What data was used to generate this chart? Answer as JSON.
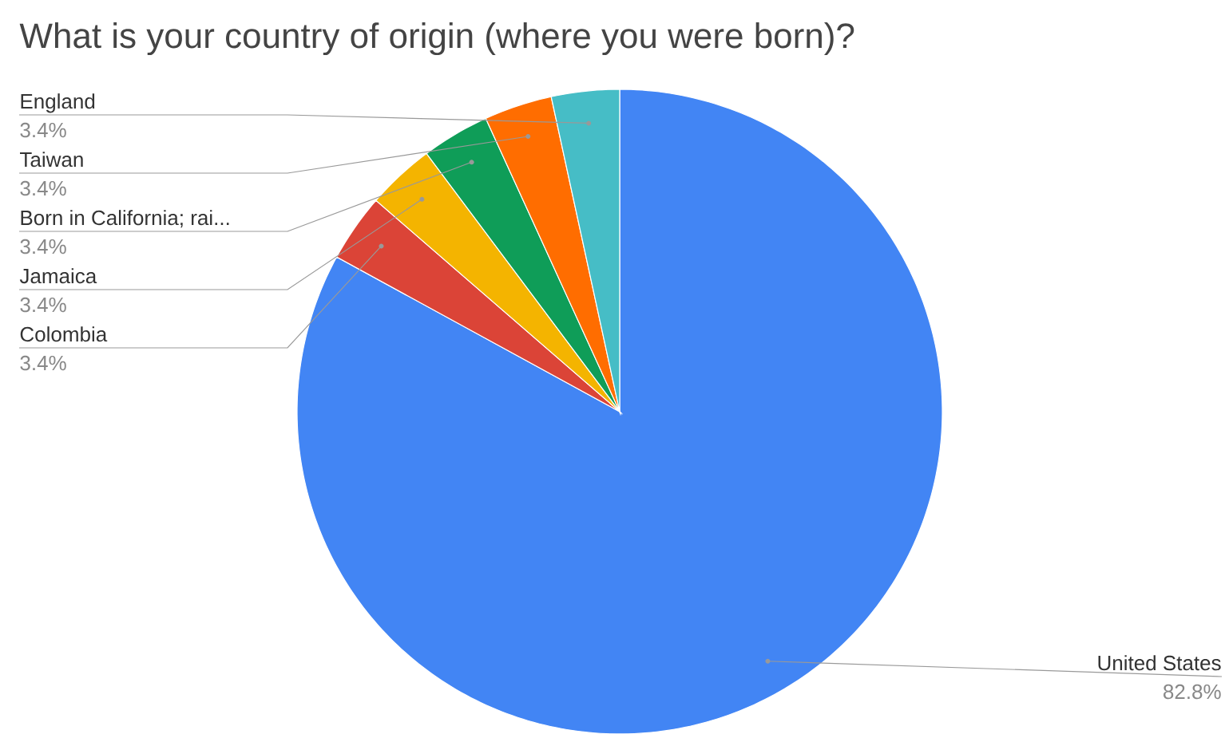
{
  "chart_data": {
    "type": "pie",
    "title": "What is your country of origin (where you were born)?",
    "categories": [
      "United States",
      "Colombia",
      "Jamaica",
      "Born in California; rai...",
      "Taiwan",
      "England"
    ],
    "values": [
      82.8,
      3.4,
      3.4,
      3.4,
      3.4,
      3.4
    ],
    "colors": [
      "#4285f4",
      "#db4437",
      "#f4b400",
      "#0f9d58",
      "#ff6d00",
      "#46bdc6"
    ],
    "value_labels": [
      "82.8%",
      "3.4%",
      "3.4%",
      "3.4%",
      "3.4%",
      "3.4%"
    ]
  }
}
